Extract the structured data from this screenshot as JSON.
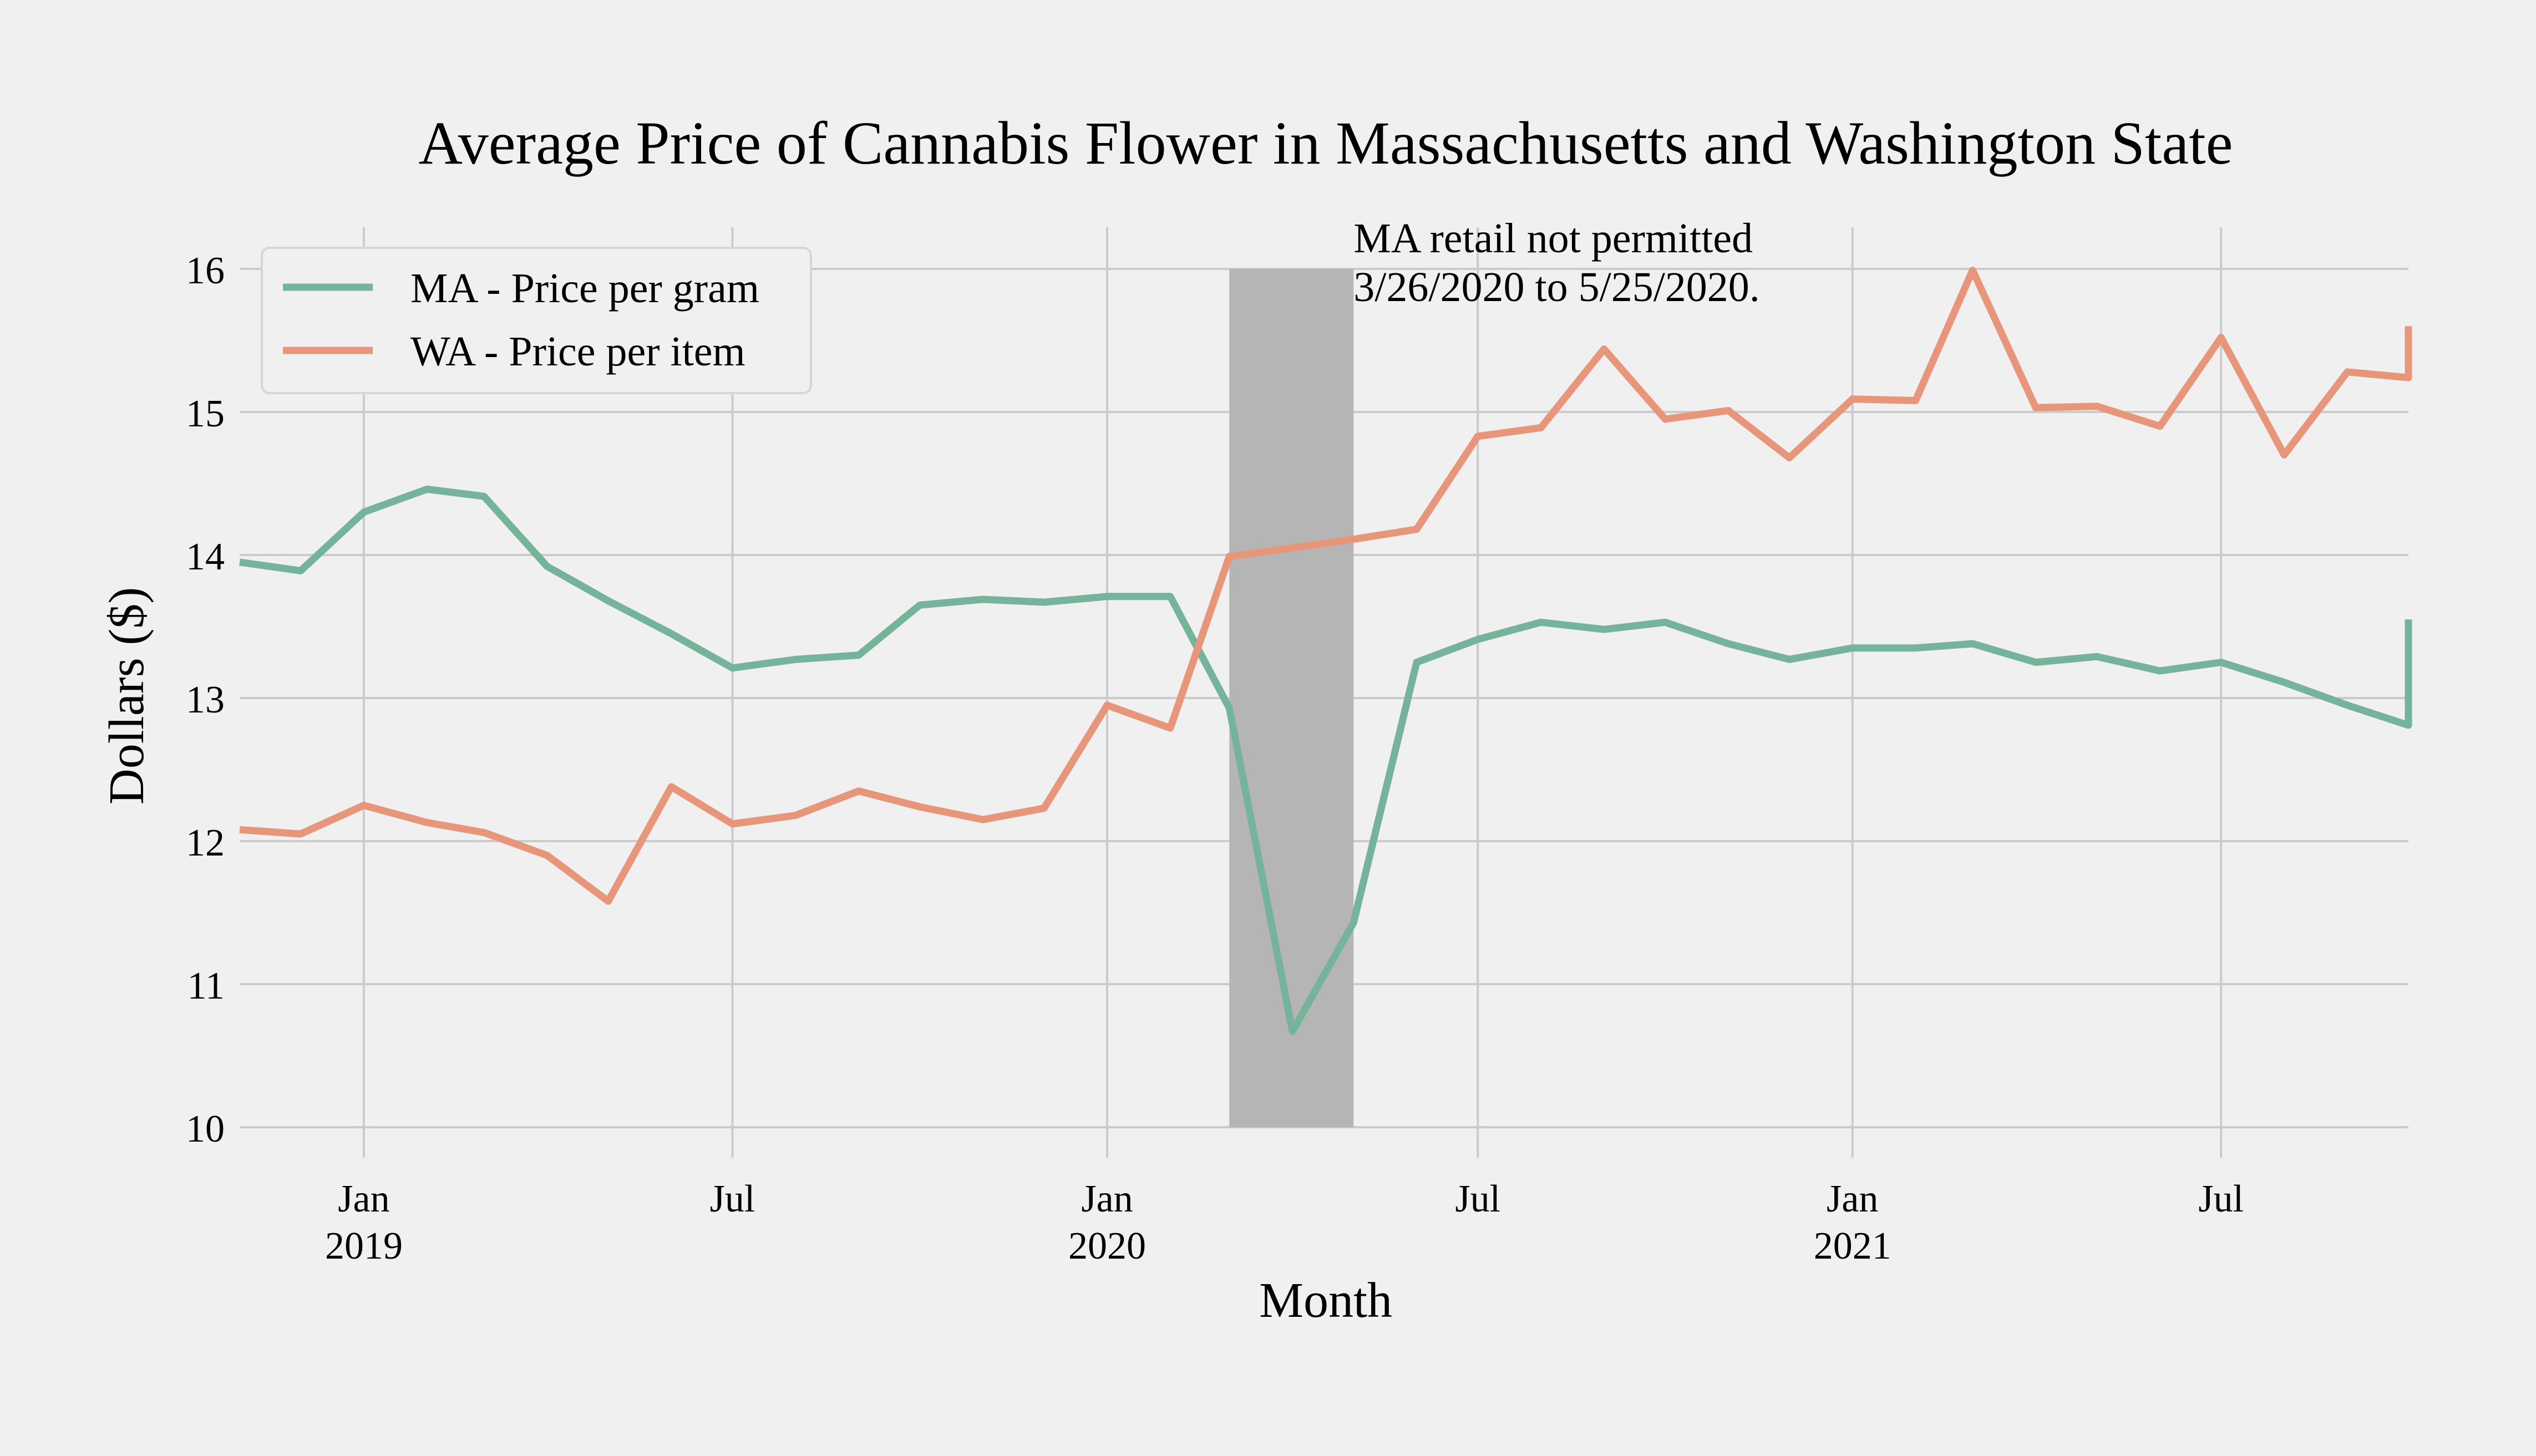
{
  "chart_data": {
    "type": "line",
    "title": "Average Price of Cannabis Flower in Massachusetts and Washington State",
    "xlabel": "Month",
    "ylabel": "Dollars ($)",
    "ylim": [
      10,
      16
    ],
    "yticks": [
      10,
      11,
      12,
      13,
      14,
      15,
      16
    ],
    "xlim": [
      "2018-11-01",
      "2021-10-01"
    ],
    "xticks": [
      {
        "date": "2019-01-01",
        "label": "Jan",
        "year": "2019"
      },
      {
        "date": "2019-07-01",
        "label": "Jul",
        "year": ""
      },
      {
        "date": "2020-01-01",
        "label": "Jan",
        "year": "2020"
      },
      {
        "date": "2020-07-01",
        "label": "Jul",
        "year": ""
      },
      {
        "date": "2021-01-01",
        "label": "Jan",
        "year": "2021"
      },
      {
        "date": "2021-07-01",
        "label": "Jul",
        "year": ""
      }
    ],
    "grid": true,
    "legend_position": "top-left",
    "x": [
      "2018-11",
      "2018-12",
      "2019-01",
      "2019-02",
      "2019-03",
      "2019-04",
      "2019-05",
      "2019-06",
      "2019-07",
      "2019-08",
      "2019-09",
      "2019-10",
      "2019-11",
      "2019-12",
      "2020-01",
      "2020-02",
      "2020-03",
      "2020-04",
      "2020-05",
      "2020-06",
      "2020-07",
      "2020-08",
      "2020-09",
      "2020-10",
      "2020-11",
      "2020-12",
      "2021-01",
      "2021-02",
      "2021-03",
      "2021-04",
      "2021-05",
      "2021-06",
      "2021-07",
      "2021-08",
      "2021-09",
      "2021-10"
    ],
    "series": [
      {
        "name": "MA - Price per gram",
        "color": "#74b49b",
        "values": [
          13.95,
          13.89,
          14.3,
          14.46,
          14.41,
          13.92,
          13.68,
          13.45,
          13.21,
          13.27,
          13.3,
          13.65,
          13.69,
          13.67,
          13.71,
          13.71,
          12.93,
          10.67,
          11.43,
          13.25,
          13.41,
          13.53,
          13.48,
          13.53,
          13.38,
          13.27,
          13.35,
          13.35,
          13.38,
          13.25,
          13.29,
          13.19,
          13.25,
          13.11,
          12.95,
          12.81
        ]
      },
      {
        "name": "WA - Price per item",
        "color": "#e8967a",
        "values": [
          12.08,
          12.05,
          12.25,
          12.13,
          12.06,
          11.9,
          11.58,
          12.38,
          12.12,
          12.18,
          12.35,
          12.24,
          12.15,
          12.23,
          12.95,
          12.79,
          13.99,
          14.05,
          14.11,
          14.18,
          14.83,
          14.89,
          15.44,
          14.95,
          15.01,
          14.68,
          15.09,
          15.08,
          15.99,
          15.03,
          15.04,
          14.9,
          15.52,
          14.7,
          15.28,
          15.24
        ]
      }
    ],
    "extra_point": {
      "x": "2021-10-01",
      "MA": 13.55,
      "WA": 15.6
    },
    "shaded_region": {
      "start": "2020-03-01",
      "end": "2020-05-01",
      "color": "#b5b5b5",
      "annotation": [
        "MA retail not permitted",
        "3/26/2020 to 5/25/2020."
      ]
    }
  }
}
